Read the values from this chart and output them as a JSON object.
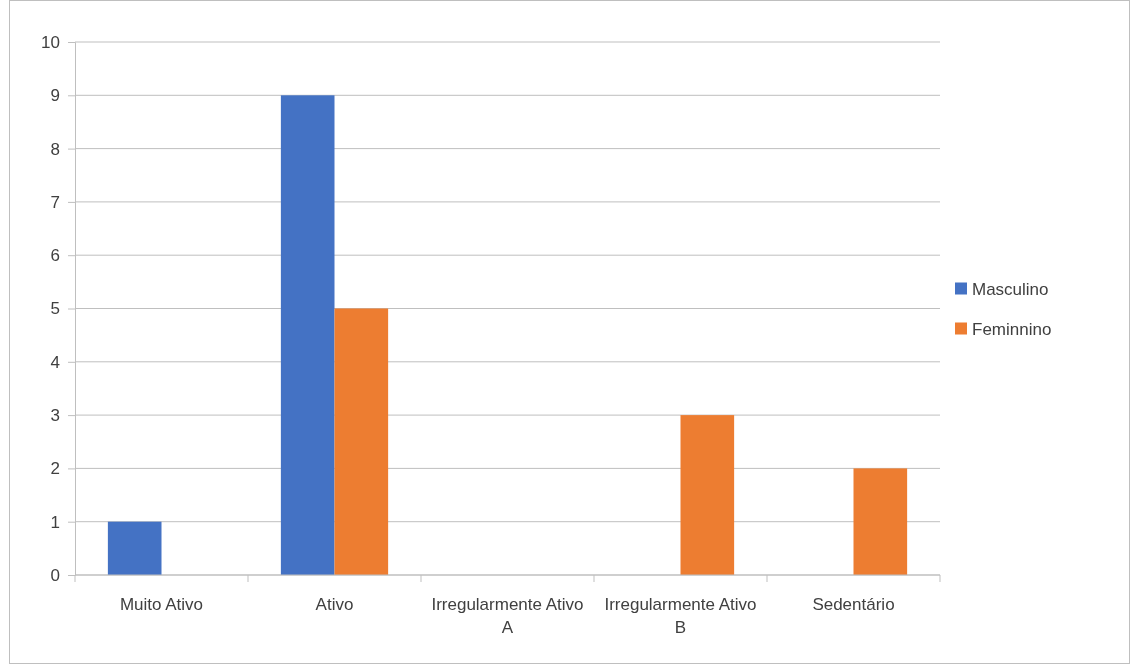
{
  "chart_data": {
    "type": "bar",
    "categories": [
      "Muito Ativo",
      "Ativo",
      "Irregularmente Ativo A",
      "Irregularmente Ativo B",
      "Sedentário"
    ],
    "series": [
      {
        "name": "Masculino",
        "color": "#4472c4",
        "values": [
          1,
          9,
          0,
          0,
          0
        ]
      },
      {
        "name": "Feminnino",
        "color": "#ed7d31",
        "values": [
          0,
          5,
          0,
          3,
          2
        ]
      }
    ],
    "ylim": [
      0,
      10
    ],
    "yticks": [
      0,
      1,
      2,
      3,
      4,
      5,
      6,
      7,
      8,
      9,
      10
    ],
    "grid": "y",
    "legend": "right"
  }
}
